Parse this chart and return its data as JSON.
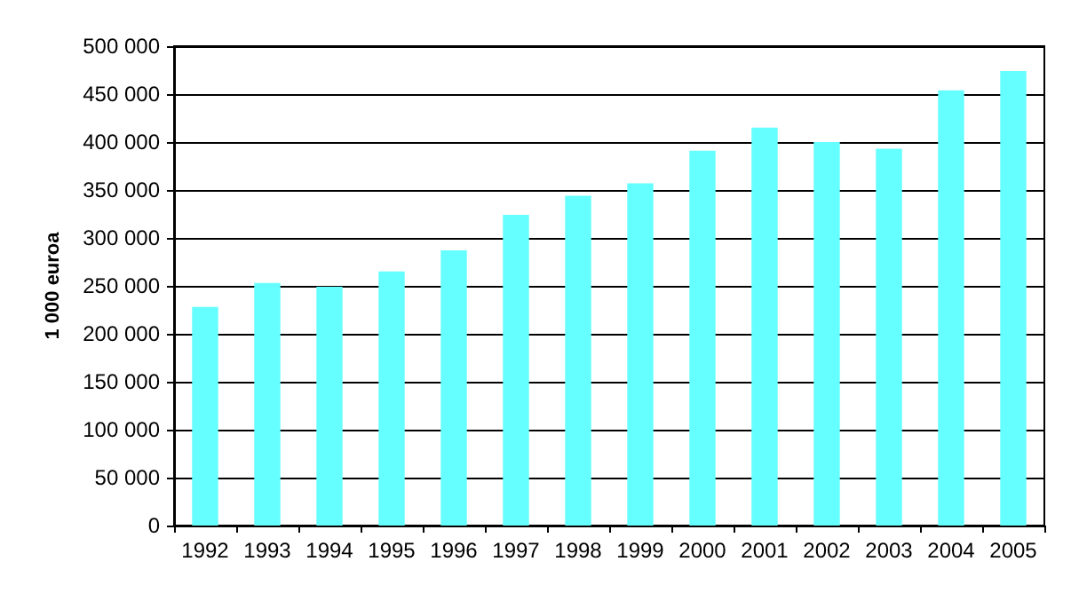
{
  "chart_data": {
    "type": "bar",
    "ylabel": "1 000 euroa",
    "categories": [
      "1992",
      "1993",
      "1994",
      "1995",
      "1996",
      "1997",
      "1998",
      "1999",
      "2000",
      "2001",
      "2002",
      "2003",
      "2004",
      "2005"
    ],
    "values": [
      228000,
      253000,
      249000,
      265000,
      287000,
      324000,
      344000,
      357000,
      391000,
      415000,
      400000,
      393000,
      454000,
      474000
    ],
    "color": "#66ffff",
    "ylim": [
      0,
      500000
    ],
    "yticks": [
      0,
      {
        "value": 50000,
        "label": "50 000"
      },
      {
        "value": 100000,
        "label": "100 000"
      },
      {
        "value": 150000,
        "label": "150 000"
      },
      {
        "value": 200000,
        "label": "200 000"
      },
      {
        "value": 250000,
        "label": "250 000"
      },
      {
        "value": 300000,
        "label": "300 000"
      },
      {
        "value": 350000,
        "label": "350 000"
      },
      {
        "value": 400000,
        "label": "400 000"
      },
      {
        "value": 450000,
        "label": "450 000"
      },
      {
        "value": 500000,
        "label": "500 000"
      }
    ],
    "grid": "y"
  }
}
